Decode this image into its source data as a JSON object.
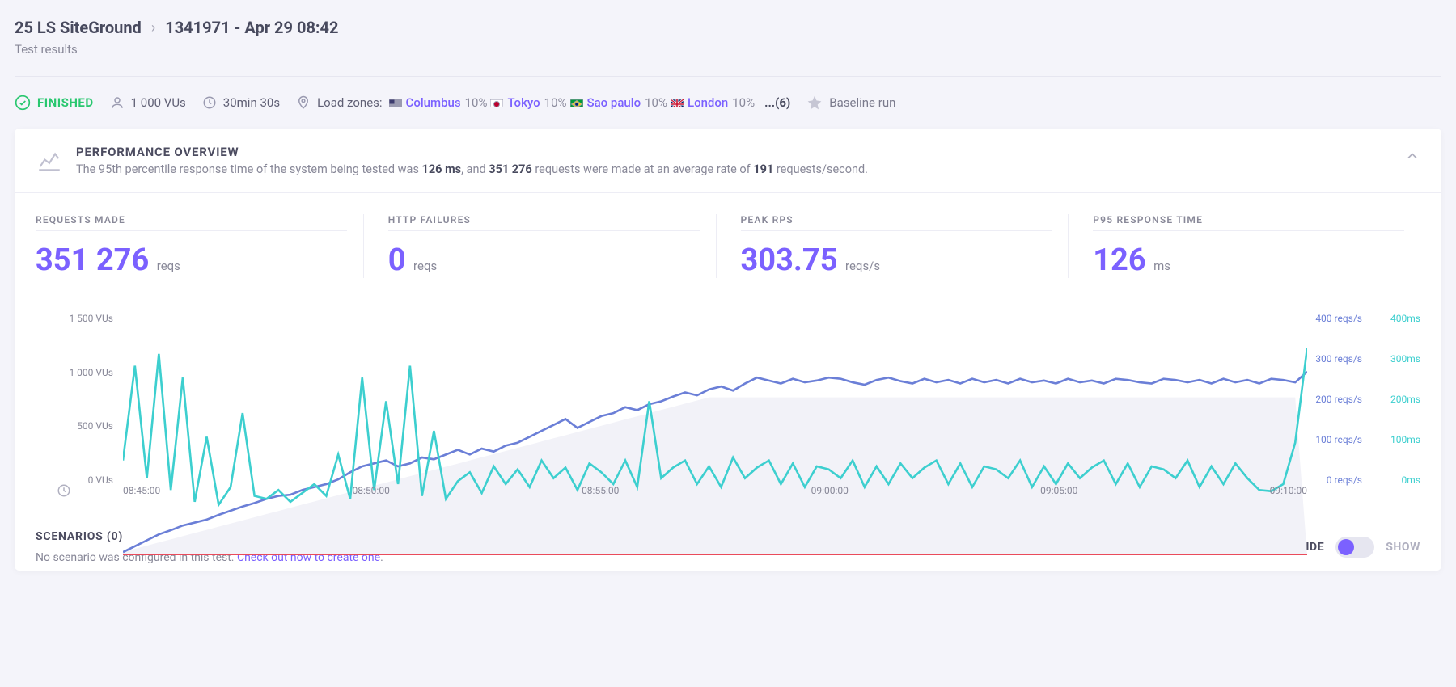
{
  "breadcrumb": {
    "item1": "25 LS SiteGround",
    "item2": "1341971 - Apr 29 08:42"
  },
  "subtitle": "Test results",
  "status": {
    "finished": "FINISHED",
    "vus": "1 000 VUs",
    "duration": "30min 30s"
  },
  "zones": {
    "label": "Load zones:",
    "items": [
      {
        "name": "Columbus",
        "perc": "10%",
        "flag": "us"
      },
      {
        "name": "Tokyo",
        "perc": "10%",
        "flag": "jp"
      },
      {
        "name": "Sao paulo",
        "perc": "10%",
        "flag": "br"
      },
      {
        "name": "London",
        "perc": "10%",
        "flag": "gb"
      }
    ],
    "more": "...(6)"
  },
  "baseline": "Baseline run",
  "overview": {
    "title": "PERFORMANCE OVERVIEW",
    "text1": "The 95th percentile response time of the system being tested was ",
    "b1": "126 ms",
    "text2": ", and ",
    "b2": "351 276",
    "text3": " requests were made at an average rate of ",
    "b3": "191",
    "text4": " requests/second."
  },
  "stats": {
    "requests_made": {
      "label": "REQUESTS MADE",
      "value": "351 276",
      "unit": "reqs"
    },
    "http_failures": {
      "label": "HTTP FAILURES",
      "value": "0",
      "unit": "reqs"
    },
    "peak_rps": {
      "label": "PEAK RPS",
      "value": "303.75",
      "unit": "reqs/s"
    },
    "p95": {
      "label": "P95 RESPONSE TIME",
      "value": "126",
      "unit": "ms"
    }
  },
  "chart": {
    "colors": {
      "vus_area": "#f2f2f8",
      "reqs_line": "#6b7fd7",
      "resp_line": "#3dcfcf",
      "fail_line": "#ea4b5b",
      "grid": "#ededf5",
      "y_left_text": "#888898"
    },
    "y_left": [
      "1 500 VUs",
      "1 000 VUs",
      "500 VUs",
      "0 VUs"
    ],
    "y_right1": [
      "400 reqs/s",
      "300 reqs/s",
      "200 reqs/s",
      "100 reqs/s",
      "0 reqs/s"
    ],
    "y_right2": [
      "400ms",
      "300ms",
      "200ms",
      "100ms",
      "0ms"
    ],
    "x_ticks": [
      "08:45:00",
      "08:50:00",
      "08:55:00",
      "09:00:00",
      "09:05:00",
      "09:10:00"
    ],
    "vus_max": 1500,
    "right_max": 400,
    "vus_series": [
      20,
      40,
      60,
      80,
      100,
      120,
      140,
      160,
      180,
      200,
      220,
      240,
      260,
      280,
      300,
      320,
      340,
      360,
      380,
      400,
      420,
      440,
      460,
      480,
      500,
      520,
      540,
      560,
      580,
      600,
      620,
      640,
      660,
      680,
      700,
      720,
      740,
      760,
      780,
      800,
      820,
      840,
      860,
      880,
      900,
      920,
      940,
      960,
      980,
      1000,
      1000,
      1000,
      1000,
      1000,
      1000,
      1000,
      1000,
      1000,
      1000,
      1000,
      1000,
      1000,
      1000,
      1000,
      1000,
      1000,
      1000,
      1000,
      1000,
      1000,
      1000,
      1000,
      1000,
      1000,
      1000,
      1000,
      1000,
      1000,
      1000,
      1000,
      1000,
      1000,
      1000,
      1000,
      1000,
      1000,
      1000,
      1000,
      1000,
      1000,
      1000,
      1000,
      1000,
      1000,
      1000,
      1000,
      1000,
      1000,
      1000,
      0
    ],
    "reqs_series": [
      5,
      15,
      25,
      35,
      42,
      50,
      55,
      60,
      68,
      75,
      82,
      88,
      95,
      100,
      102,
      110,
      115,
      120,
      128,
      140,
      150,
      155,
      160,
      150,
      155,
      165,
      162,
      170,
      178,
      170,
      180,
      175,
      185,
      190,
      200,
      210,
      220,
      230,
      215,
      225,
      235,
      240,
      250,
      245,
      255,
      260,
      268,
      275,
      270,
      280,
      285,
      278,
      290,
      300,
      295,
      290,
      298,
      292,
      295,
      300,
      298,
      292,
      288,
      296,
      300,
      294,
      290,
      298,
      292,
      296,
      290,
      298,
      292,
      296,
      290,
      298,
      292,
      295,
      290,
      298,
      292,
      295,
      290,
      298,
      296,
      292,
      290,
      298,
      296,
      292,
      296,
      290,
      298,
      292,
      296,
      290,
      298,
      296,
      292,
      310
    ],
    "resp_series": [
      160,
      320,
      130,
      340,
      110,
      300,
      90,
      200,
      85,
      115,
      240,
      100,
      95,
      110,
      90,
      105,
      120,
      100,
      170,
      95,
      300,
      110,
      260,
      120,
      320,
      100,
      210,
      95,
      125,
      140,
      105,
      150,
      120,
      145,
      115,
      160,
      130,
      148,
      110,
      155,
      140,
      120,
      160,
      115,
      260,
      130,
      148,
      160,
      120,
      150,
      115,
      165,
      130,
      148,
      160,
      120,
      155,
      115,
      150,
      145,
      130,
      160,
      115,
      150,
      120,
      155,
      130,
      148,
      160,
      120,
      155,
      115,
      150,
      145,
      130,
      160,
      115,
      150,
      120,
      155,
      130,
      148,
      160,
      120,
      155,
      115,
      150,
      145,
      130,
      160,
      115,
      150,
      120,
      155,
      130,
      110,
      108,
      120,
      190,
      350
    ]
  },
  "scenarios": {
    "title_text": "SCENARIOS ",
    "title_count": "(0)",
    "sub": "No scenario was configured in this test.  ",
    "link": "Check out how to create one",
    "dot": ".",
    "hide": "HIDE",
    "show": "SHOW"
  }
}
